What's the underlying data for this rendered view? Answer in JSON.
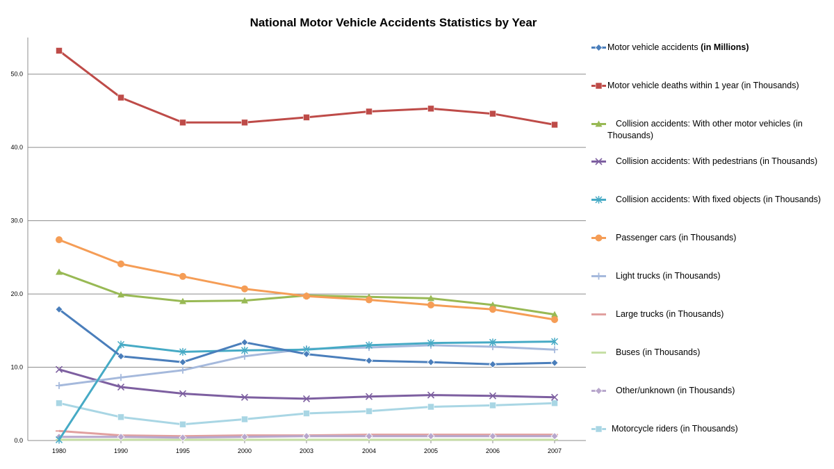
{
  "chart_data": {
    "type": "line",
    "title": "National Motor Vehicle Accidents Statistics by Year",
    "categories": [
      "1980",
      "1990",
      "1995",
      "2000",
      "2003",
      "2004",
      "2005",
      "2006",
      "2007"
    ],
    "ylim": [
      0,
      55
    ],
    "yticks": [
      "0.0",
      "10.0",
      "20.0",
      "30.0",
      "40.0",
      "50.0"
    ],
    "grid": "horizontal",
    "legend_position": "right",
    "series": [
      {
        "name": "Motor vehicle accidents",
        "name_suffix": "(in Millions)",
        "color": "#4a7ebb",
        "marker": "diamond",
        "values": [
          17.9,
          11.5,
          10.7,
          13.4,
          11.8,
          10.9,
          10.7,
          10.4,
          10.6
        ]
      },
      {
        "name": "Motor vehicle deaths within 1 year  (in Thousands)",
        "color": "#be4b48",
        "marker": "square",
        "values": [
          53.2,
          46.8,
          43.4,
          43.4,
          44.1,
          44.9,
          45.3,
          44.6,
          43.1
        ]
      },
      {
        "name": "Collision accidents: With other motor vehicles  (in Thousands)",
        "color": "#98b954",
        "marker": "triangle",
        "values": [
          23.0,
          19.9,
          19.0,
          19.1,
          19.8,
          19.6,
          19.4,
          18.5,
          17.2
        ]
      },
      {
        "name": "Collision accidents: With pedestrians  (in Thousands)",
        "color": "#7d5fa0",
        "marker": "x",
        "values": [
          9.7,
          7.3,
          6.4,
          5.9,
          5.7,
          6.0,
          6.2,
          6.1,
          5.9
        ]
      },
      {
        "name": "Collision accidents: With fixed objects  (in Thousands)",
        "color": "#46aac5",
        "marker": "star",
        "values": [
          0.1,
          13.1,
          12.1,
          12.3,
          12.4,
          13.0,
          13.3,
          13.4,
          13.5
        ]
      },
      {
        "name": "Passenger cars  (in Thousands)",
        "color": "#f59d56",
        "marker": "circle",
        "values": [
          27.4,
          24.1,
          22.4,
          20.7,
          19.7,
          19.2,
          18.5,
          17.9,
          16.5
        ]
      },
      {
        "name": "Light trucks   (in Thousands)",
        "color": "#a5b9dc",
        "marker": "plus",
        "values": [
          7.5,
          8.6,
          9.6,
          11.5,
          12.5,
          12.7,
          13.0,
          12.8,
          12.4
        ]
      },
      {
        "name": "Large trucks  (in Thousands)",
        "color": "#e1a09f",
        "marker": "dash",
        "values": [
          1.3,
          0.7,
          0.6,
          0.7,
          0.7,
          0.8,
          0.8,
          0.8,
          0.8
        ]
      },
      {
        "name": "Buses  (in Thousands)",
        "color": "#c6dfa5",
        "marker": "dash",
        "values": [
          0.1,
          0.1,
          0.1,
          0.1,
          0.1,
          0.1,
          0.1,
          0.1,
          0.1
        ]
      },
      {
        "name": "Other/unknown  (in Thousands)",
        "color": "#b8a7cc",
        "marker": "diamond",
        "values": [
          0.5,
          0.5,
          0.4,
          0.5,
          0.6,
          0.6,
          0.6,
          0.6,
          0.6
        ]
      },
      {
        "name": "Motorcycle riders  (in Thousands)",
        "color": "#a9d6e4",
        "marker": "square",
        "values": [
          5.1,
          3.2,
          2.2,
          2.9,
          3.7,
          4.0,
          4.6,
          4.8,
          5.1
        ]
      }
    ]
  }
}
